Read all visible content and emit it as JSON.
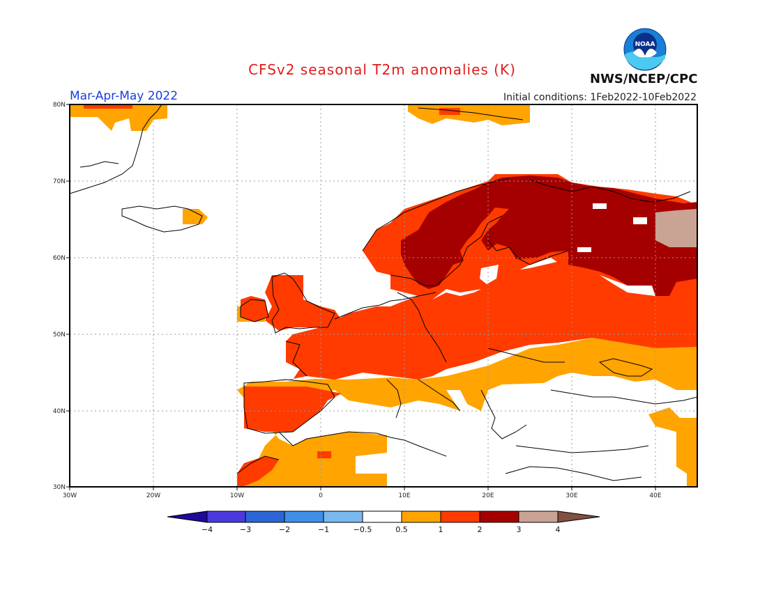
{
  "header": {
    "title": "CFSv2 seasonal T2m anomalies (K)",
    "season": "Mar-Apr-May 2022",
    "initial_conditions": "Initial conditions: 1Feb2022-10Feb2022",
    "org": "NWS/NCEP/CPC",
    "logo_text": "NOAA"
  },
  "axes": {
    "lon_labels": [
      "30W",
      "20W",
      "10W",
      "0",
      "10E",
      "20E",
      "30E",
      "40E"
    ],
    "lat_labels": [
      "80N",
      "70N",
      "60N",
      "50N",
      "40N",
      "30N"
    ]
  },
  "colorbar": {
    "labels": [
      "−4",
      "−3",
      "−2",
      "−1",
      "−0.5",
      "0.5",
      "1",
      "2",
      "3",
      "4"
    ],
    "colors": [
      "#1e0a9a",
      "#4a3adb",
      "#2c66d6",
      "#3f8fe8",
      "#7ab8f0",
      "#ffffff",
      "#ffa400",
      "#ff3b00",
      "#a50000",
      "#c9a393",
      "#805040"
    ]
  },
  "colors": {
    "anomaly_0_5_to_1": "#ffa400",
    "anomaly_1_to_2": "#ff3b00",
    "anomaly_2_to_3": "#a50000",
    "anomaly_3_to_4": "#c9a393"
  }
}
